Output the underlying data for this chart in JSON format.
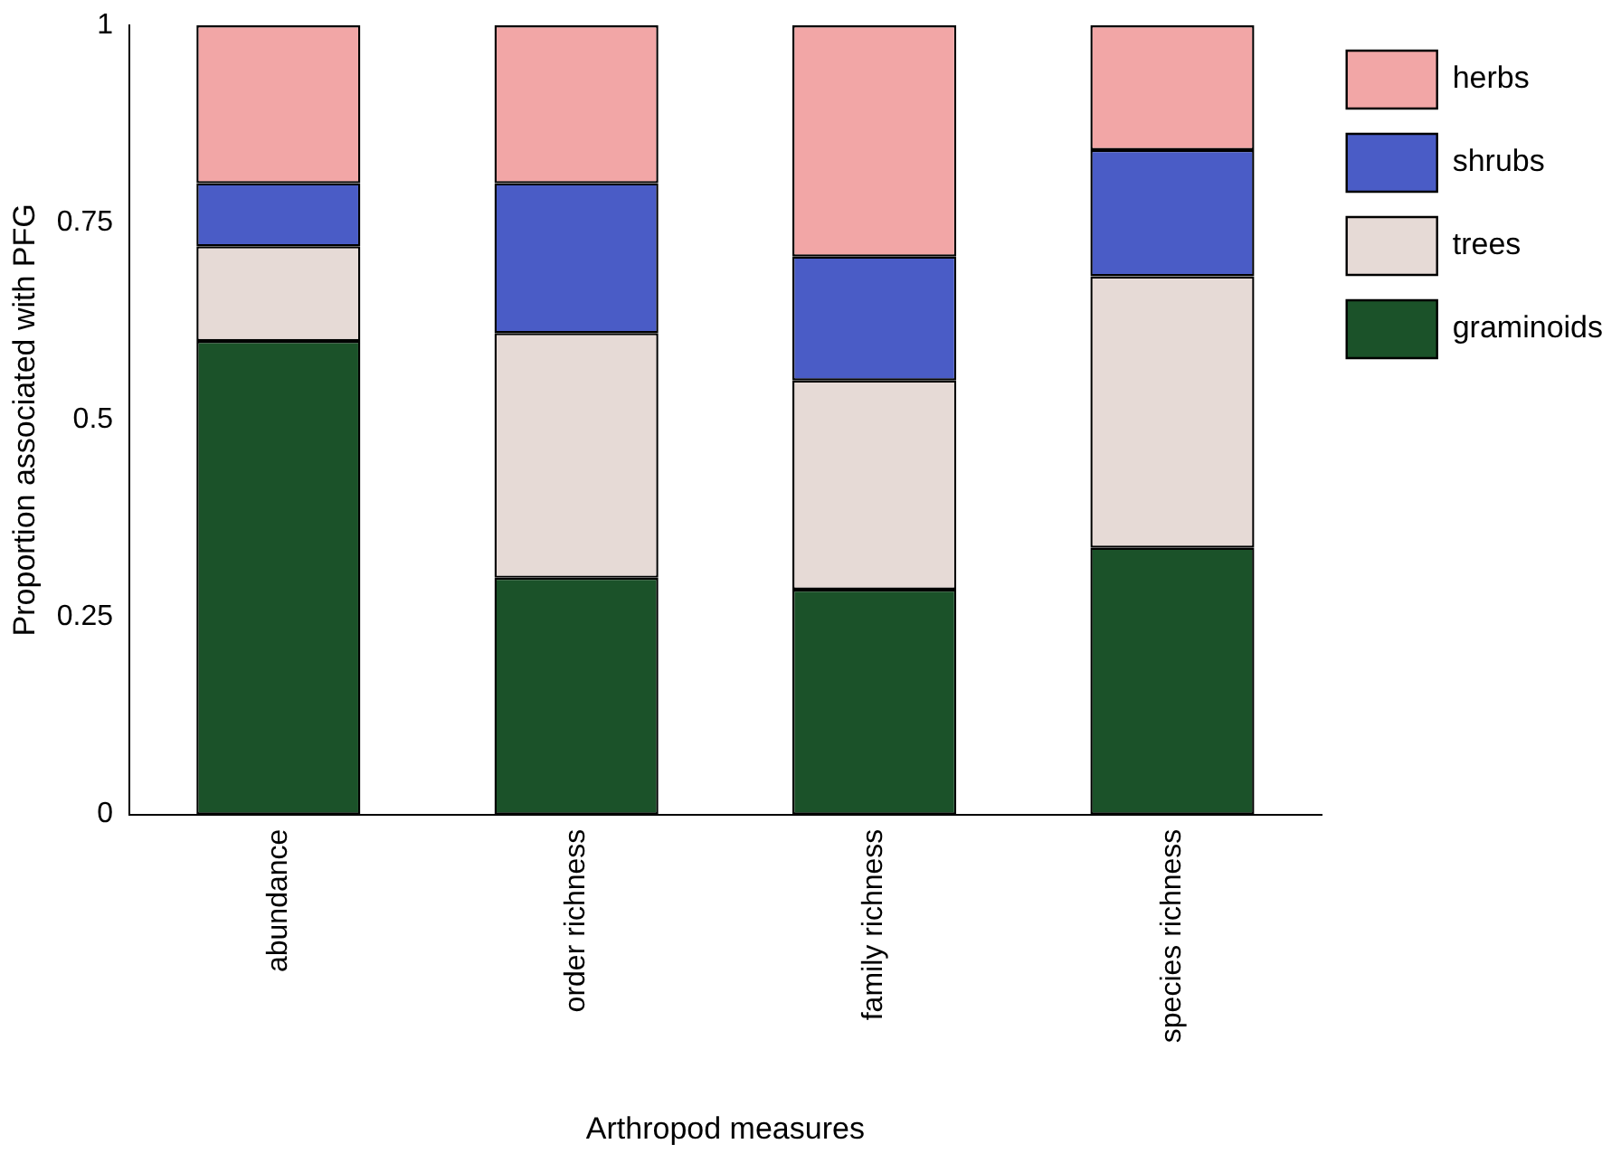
{
  "chart_data": {
    "type": "bar",
    "stacked": true,
    "xlabel": "Arthropod measures",
    "ylabel": "Proportion associated with PFG",
    "categories": [
      "abundance",
      "order richness",
      "family richness",
      "species richness"
    ],
    "series": [
      {
        "name": "graminoids",
        "color": "#1b5229",
        "values": [
          0.6,
          0.3,
          0.285,
          0.338
        ]
      },
      {
        "name": "trees",
        "color": "#e6dad6",
        "values": [
          0.12,
          0.31,
          0.265,
          0.344
        ]
      },
      {
        "name": "shrubs",
        "color": "#4a5cc6",
        "values": [
          0.08,
          0.19,
          0.157,
          0.16
        ]
      },
      {
        "name": "herbs",
        "color": "#f2a6a6",
        "values": [
          0.2,
          0.2,
          0.293,
          0.158
        ]
      }
    ],
    "ylim": [
      0,
      1
    ],
    "yticks": [
      0,
      0.25,
      0.5,
      0.75,
      1
    ],
    "grid": false,
    "legend": "right"
  }
}
